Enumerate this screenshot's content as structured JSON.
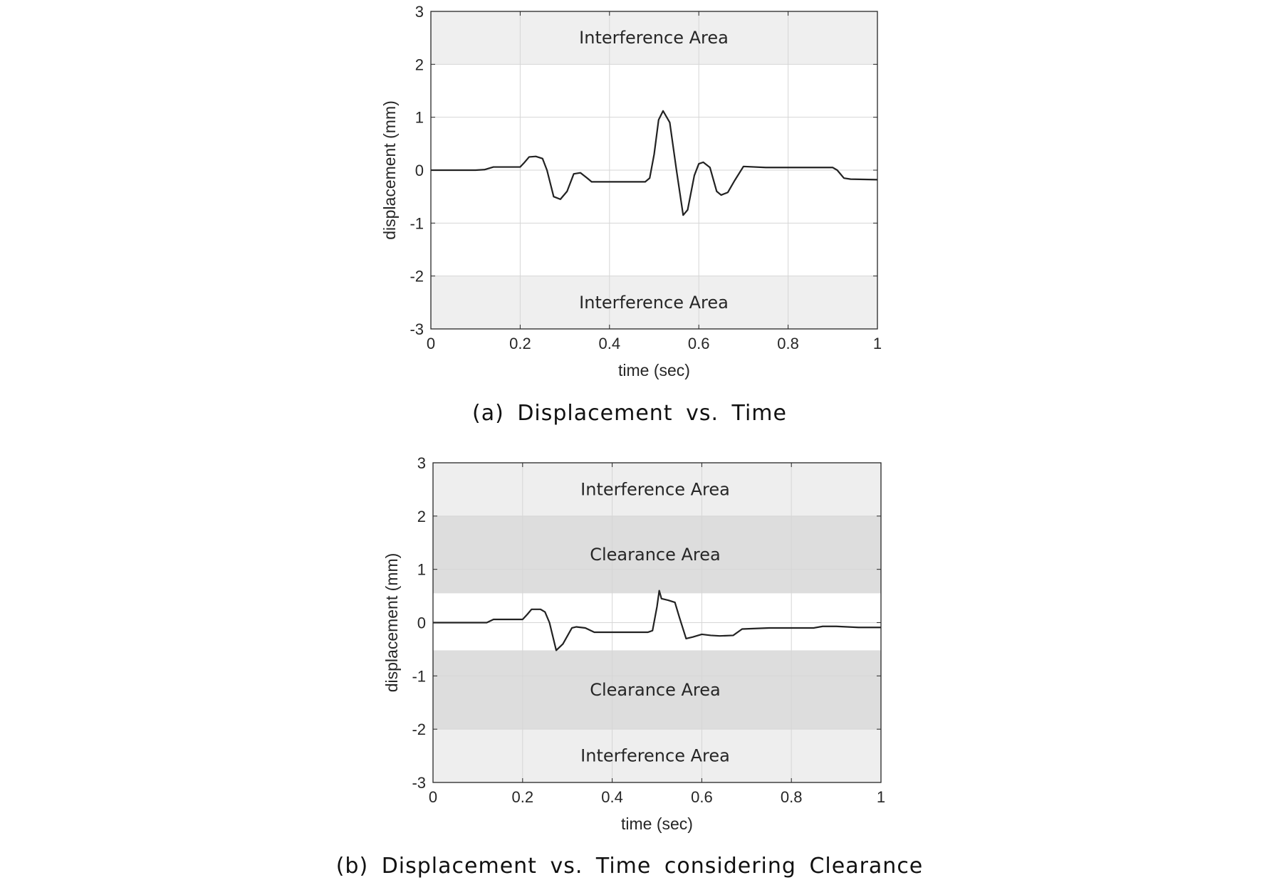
{
  "chart_data": [
    {
      "type": "line",
      "panel": "a",
      "caption": "(a) Displacement vs. Time",
      "xlabel": "time (sec)",
      "ylabel": "displacement (mm)",
      "xlim": [
        0,
        1
      ],
      "ylim": [
        -3,
        3
      ],
      "xticks": [
        0,
        0.2,
        0.4,
        0.6,
        0.8,
        1
      ],
      "xtick_labels": [
        "0",
        "0.2",
        "0.4",
        "0.6",
        "0.8",
        "1"
      ],
      "yticks": [
        3,
        2,
        1,
        0,
        -1,
        -2,
        -3
      ],
      "ytick_labels": [
        "3",
        "2",
        "1",
        "0",
        "-1",
        "-2",
        "-3"
      ],
      "grid": true,
      "bands": [
        {
          "label": "Interference Area",
          "y0": 2,
          "y1": 3,
          "color": "#efefef"
        },
        {
          "label": "Interference Area",
          "y0": -3,
          "y1": -2,
          "color": "#efefef"
        }
      ],
      "series": [
        {
          "color": "#222222",
          "x": [
            0,
            0.1,
            0.12,
            0.14,
            0.2,
            0.21,
            0.22,
            0.235,
            0.25,
            0.26,
            0.275,
            0.29,
            0.305,
            0.32,
            0.335,
            0.35,
            0.36,
            0.4,
            0.48,
            0.49,
            0.5,
            0.51,
            0.52,
            0.535,
            0.55,
            0.565,
            0.575,
            0.59,
            0.6,
            0.61,
            0.625,
            0.64,
            0.65,
            0.665,
            0.68,
            0.7,
            0.75,
            0.9,
            0.91,
            0.925,
            0.94,
            1
          ],
          "y": [
            0,
            0,
            0.01,
            0.06,
            0.06,
            0.15,
            0.25,
            0.26,
            0.22,
            0.0,
            -0.5,
            -0.55,
            -0.4,
            -0.07,
            -0.05,
            -0.15,
            -0.22,
            -0.22,
            -0.22,
            -0.15,
            0.3,
            0.95,
            1.12,
            0.9,
            0.0,
            -0.85,
            -0.75,
            -0.1,
            0.12,
            0.15,
            0.05,
            -0.4,
            -0.47,
            -0.42,
            -0.2,
            0.07,
            0.05,
            0.05,
            0.0,
            -0.15,
            -0.17,
            -0.18
          ]
        }
      ]
    },
    {
      "type": "line",
      "panel": "b",
      "caption": "(b) Displacement vs. Time considering Clearance",
      "xlabel": "time (sec)",
      "ylabel": "displacement (mm)",
      "xlim": [
        0,
        1
      ],
      "ylim": [
        -3,
        3
      ],
      "xticks": [
        0,
        0.2,
        0.4,
        0.6,
        0.8,
        1
      ],
      "xtick_labels": [
        "0",
        "0.2",
        "0.4",
        "0.6",
        "0.8",
        "1"
      ],
      "yticks": [
        3,
        2,
        1,
        0,
        -1,
        -2,
        -3
      ],
      "ytick_labels": [
        "3",
        "2",
        "1",
        "0",
        "-1",
        "-2",
        "-3"
      ],
      "grid": true,
      "bands": [
        {
          "label": "Interference Area",
          "y0": 2,
          "y1": 3,
          "color": "#eeeeee"
        },
        {
          "label": "Clearance Area",
          "y0": 0.55,
          "y1": 2,
          "color": "#dddddd"
        },
        {
          "label": "Clearance Area",
          "y0": -2,
          "y1": -0.52,
          "color": "#dddddd"
        },
        {
          "label": "Interference Area",
          "y0": -3,
          "y1": -2,
          "color": "#eeeeee"
        }
      ],
      "series": [
        {
          "color": "#222222",
          "x": [
            0,
            0.12,
            0.135,
            0.2,
            0.21,
            0.22,
            0.24,
            0.25,
            0.26,
            0.275,
            0.29,
            0.31,
            0.32,
            0.34,
            0.36,
            0.48,
            0.49,
            0.5,
            0.505,
            0.51,
            0.525,
            0.54,
            0.55,
            0.565,
            0.58,
            0.6,
            0.62,
            0.64,
            0.67,
            0.69,
            0.75,
            0.85,
            0.87,
            0.9,
            0.95,
            1
          ],
          "y": [
            0,
            0,
            0.06,
            0.06,
            0.15,
            0.25,
            0.25,
            0.2,
            0.0,
            -0.52,
            -0.4,
            -0.1,
            -0.08,
            -0.1,
            -0.18,
            -0.18,
            -0.15,
            0.3,
            0.6,
            0.45,
            0.42,
            0.38,
            0.1,
            -0.3,
            -0.27,
            -0.22,
            -0.24,
            -0.25,
            -0.24,
            -0.12,
            -0.1,
            -0.1,
            -0.07,
            -0.07,
            -0.09,
            -0.09
          ]
        }
      ]
    }
  ]
}
